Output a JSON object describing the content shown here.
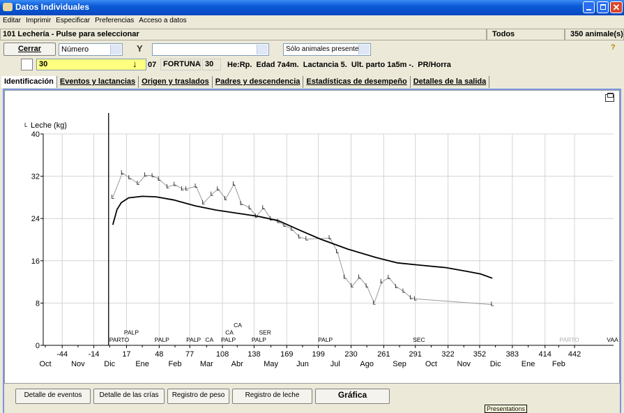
{
  "window": {
    "title": "Datos Individuales"
  },
  "menu": [
    "Editar",
    "Imprimir",
    "Especificar",
    "Preferencias",
    "Acceso a datos"
  ],
  "status": {
    "herd": "101 Lechería - Pulse para seleccionar",
    "filter": "Todos",
    "count": "350 animale(s)"
  },
  "toolbar": {
    "close": "Cerrar",
    "sort": "Número",
    "presence": "Sólo animales presentes"
  },
  "animal": {
    "id": "30",
    "group": "07",
    "name": "FORTUNA",
    "number": "30",
    "info": "He:Rp.  Edad 7a4m.  Lactancia 5.  Ult. parto 1a5m -.  PR/Horra"
  },
  "tabs": [
    "Identificación",
    "Eventos y lactancias",
    "Origen y traslados",
    "Padres y descendencia",
    "Estadísticas de desempeño",
    "Detalles de la salida"
  ],
  "buttons": [
    "Detalle de eventos",
    "Detalle de las crías",
    "Registro de peso",
    "Registro de leche",
    "Gráfica"
  ],
  "tooltip": "Presentations",
  "chart": {
    "type": "line",
    "xlim": [
      -62,
      479
    ],
    "ylim": [
      0,
      40
    ],
    "yticks": [
      0,
      8,
      16,
      24,
      32,
      40
    ],
    "xticks": [
      -44,
      -14,
      17,
      48,
      77,
      108,
      138,
      169,
      199,
      230,
      261,
      291,
      322,
      352,
      383,
      414,
      442
    ],
    "month_ticks": [
      {
        "value": -60,
        "label": "Oct"
      },
      {
        "value": -29,
        "label": "Nov"
      },
      {
        "value": 1,
        "label": "Dic"
      },
      {
        "value": 32,
        "label": "Ene"
      },
      {
        "value": 63,
        "label": "Feb"
      },
      {
        "value": 93,
        "label": "Mar"
      },
      {
        "value": 122,
        "label": "Abr"
      },
      {
        "value": 154,
        "label": "May"
      },
      {
        "value": 184,
        "label": "Jun"
      },
      {
        "value": 215,
        "label": "Jul"
      },
      {
        "value": 245,
        "label": "Ago"
      },
      {
        "value": 276,
        "label": "Sep"
      },
      {
        "value": 306,
        "label": "Oct"
      },
      {
        "value": 337,
        "label": "Nov"
      },
      {
        "value": 367,
        "label": "Dic"
      },
      {
        "value": 398,
        "label": "Ene"
      },
      {
        "value": 427,
        "label": "Feb"
      }
    ],
    "grid": true,
    "series": [
      {
        "name": "Leche (kg)",
        "color": "#9a9a9a",
        "marker": "L",
        "x": [
          4,
          13,
          20,
          28,
          35,
          42,
          48,
          56,
          63,
          70,
          74,
          83,
          90,
          98,
          104,
          111,
          119,
          126,
          134,
          140,
          147,
          154,
          161,
          167,
          174,
          181,
          188,
          210,
          217,
          224,
          231,
          238,
          245,
          252,
          259,
          266,
          273,
          280,
          287,
          291,
          364
        ],
        "values": [
          28,
          32.6,
          31.7,
          30.6,
          32.2,
          32.1,
          31.4,
          30,
          30.4,
          29.6,
          29.6,
          30.1,
          26.9,
          28.6,
          29.6,
          27.7,
          30.5,
          26.8,
          26,
          24.4,
          26,
          23.9,
          23.4,
          22.7,
          22,
          20.5,
          20.1,
          20.3,
          17.7,
          12.9,
          11.2,
          12.9,
          11.2,
          8,
          12,
          12.8,
          11.1,
          10.2,
          9,
          8.8,
          7.7
        ]
      },
      {
        "color": "#000000",
        "x": [
          4,
          8,
          12,
          19,
          32,
          45,
          62,
          82,
          102,
          122,
          142,
          161,
          181,
          201,
          227,
          254,
          274,
          294,
          320,
          340,
          353,
          364
        ],
        "values": [
          22.8,
          25.7,
          27,
          27.9,
          28.2,
          28.1,
          27.5,
          26.4,
          25.6,
          25,
          24.4,
          23.6,
          21.8,
          20.1,
          18.2,
          16.6,
          15.6,
          15.2,
          14.7,
          14,
          13.5,
          12.7
        ]
      }
    ],
    "events": [
      {
        "day": 0,
        "label": "PARTO",
        "line": true
      },
      {
        "day": 14,
        "label": "PALP"
      },
      {
        "day": 43,
        "label": "PALP"
      },
      {
        "day": 73,
        "label": "PALP"
      },
      {
        "day": 91,
        "label": "CA"
      },
      {
        "day": 106,
        "label": "PALP"
      },
      {
        "day": 110,
        "label": "CA"
      },
      {
        "day": 118,
        "label": "CA"
      },
      {
        "day": 135,
        "label": "PALP"
      },
      {
        "day": 142,
        "label": "SER"
      },
      {
        "day": 198,
        "label": "PALP"
      },
      {
        "day": 288,
        "label": "SEC"
      },
      {
        "day": 427,
        "label": "PARTO",
        "color": "#b0b0b0"
      },
      {
        "day": 472,
        "label": "VAA"
      }
    ]
  }
}
